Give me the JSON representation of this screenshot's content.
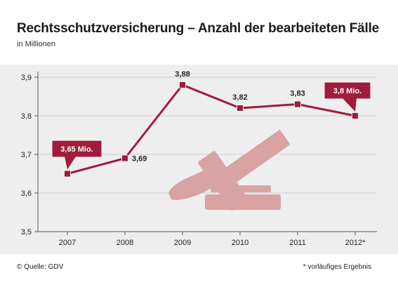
{
  "header": {
    "title": "Rechtsschutzversicherung – Anzahl der bearbeiteten Fälle",
    "subtitle": "in Millionen"
  },
  "footer": {
    "source": "© Quelle: GDV",
    "footnote": "* vorläufiges Ergebnis"
  },
  "colors": {
    "line": "#a01c3c",
    "callout": "#a01c3c",
    "gavel": "#d9a3a3",
    "background": "#eeeeef"
  },
  "icons": [
    "gavel-icon"
  ],
  "chart_data": {
    "type": "line",
    "categories": [
      "2007",
      "2008",
      "2009",
      "2010",
      "2011",
      "2012*"
    ],
    "values": [
      3.65,
      3.69,
      3.88,
      3.82,
      3.83,
      3.8
    ],
    "data_labels": [
      "3,65 Mio.",
      "3,69",
      "3,88",
      "3,82",
      "3,83",
      "3,8 Mio."
    ],
    "highlighted_labels": [
      0,
      5
    ],
    "yticks": [
      "3,5",
      "3,6",
      "3,7",
      "3,8",
      "3,9"
    ],
    "ytick_values": [
      3.5,
      3.6,
      3.7,
      3.8,
      3.9
    ],
    "ylim": [
      3.5,
      3.9
    ],
    "grid": true
  }
}
